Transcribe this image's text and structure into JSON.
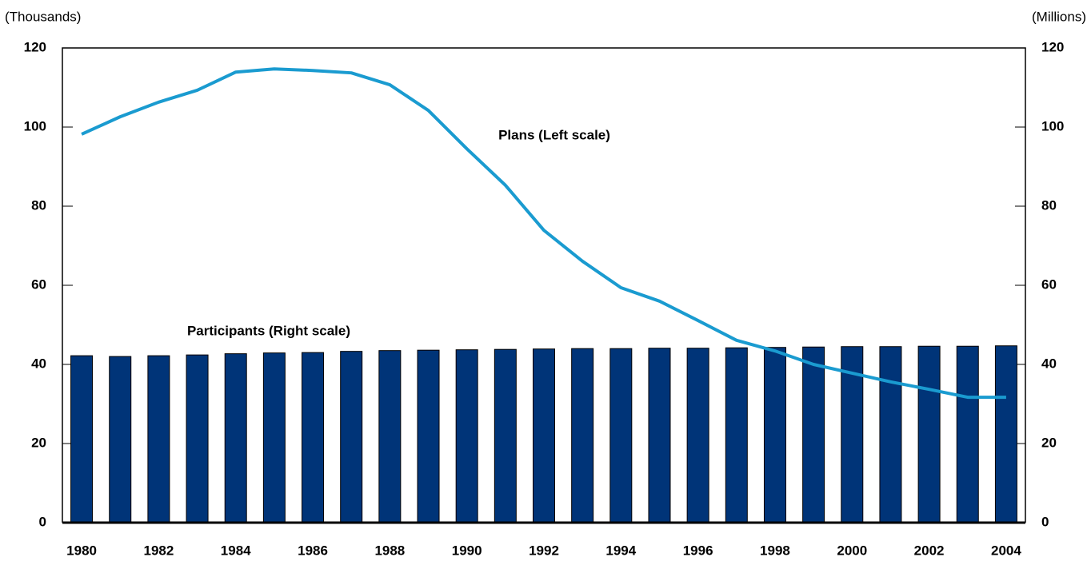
{
  "chart_data": {
    "type": "combo",
    "ylabel": "(Thousands)",
    "y2label": "(Millions)",
    "categories": [
      "1980",
      null,
      "1982",
      null,
      "1984",
      null,
      "1986",
      null,
      "1988",
      null,
      "1990",
      null,
      "1992",
      null,
      "1994",
      null,
      "1996",
      null,
      "1998",
      null,
      "2000",
      null,
      "2002",
      null,
      "2004"
    ],
    "series": [
      {
        "name": "Participants (Right scale)",
        "type": "bar",
        "axis": "y2",
        "color": "#003478",
        "values": [
          42.2,
          42.0,
          42.2,
          42.4,
          42.7,
          42.9,
          43.0,
          43.3,
          43.5,
          43.6,
          43.7,
          43.8,
          43.9,
          44.0,
          44.0,
          44.1,
          44.1,
          44.2,
          44.3,
          44.4,
          44.5,
          44.5,
          44.6,
          44.6,
          44.7
        ]
      },
      {
        "name": "Plans (Left scale)",
        "type": "line",
        "color": "#1a9bd0",
        "values": [
          98.2,
          102.6,
          106.3,
          109.3,
          113.9,
          114.7,
          114.3,
          113.7,
          110.7,
          104.2,
          94.5,
          85.3,
          73.9,
          66.1,
          59.4,
          56.0,
          51.1,
          46.1,
          43.4,
          40.0,
          37.8,
          35.6,
          33.7,
          31.7,
          31.7
        ]
      }
    ],
    "ylim": [
      0,
      120
    ],
    "yticks": [
      0,
      20,
      40,
      60,
      80,
      100,
      120
    ],
    "y2lim": [
      0,
      120
    ],
    "y2ticks": [
      0,
      20,
      40,
      60,
      80,
      100,
      120
    ],
    "grid": false
  }
}
